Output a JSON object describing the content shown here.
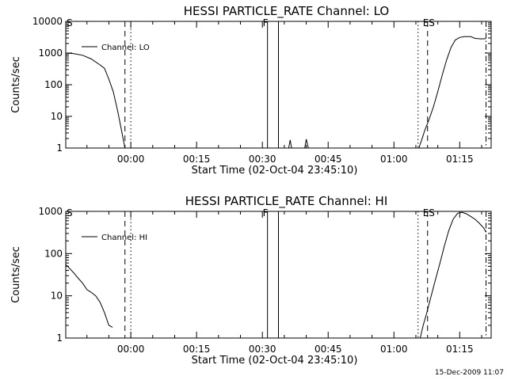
{
  "footer_timestamp": "15-Dec-2009 11:07",
  "chart_data": [
    {
      "type": "line",
      "title": "HESSI PARTICLE_RATE Channel: LO",
      "xlabel": "Start Time (02-Oct-04 23:45:10)",
      "ylabel": "Counts/sec",
      "yscale": "log",
      "ylim": [
        1,
        10000
      ],
      "yticks": [
        "1",
        "10",
        "100",
        "1000",
        "10000"
      ],
      "xlim": [
        "23:45:10",
        "01:22:10"
      ],
      "xticks": [
        "00:00",
        "00:15",
        "00:30",
        "00:45",
        "01:00",
        "01:15"
      ],
      "legend": "Channel: LO",
      "legend_position": "top-left",
      "series": [
        {
          "name": "Channel: LO",
          "segments": [
            [
              [
                "23:45:10",
                1000
              ],
              [
                "23:47:00",
                960
              ],
              [
                "23:49:00",
                850
              ],
              [
                "23:51:00",
                650
              ],
              [
                "23:53:00",
                420
              ],
              [
                "23:54:00",
                330
              ],
              [
                "23:55:00",
                150
              ],
              [
                "23:56:00",
                60
              ],
              [
                "23:57:00",
                15
              ],
              [
                "23:58:00",
                3
              ],
              [
                "23:58:40",
                1
              ]
            ],
            [
              [
                "00:36:00",
                1
              ],
              [
                "00:36:20",
                1.8
              ],
              [
                "00:36:40",
                1
              ]
            ],
            [
              [
                "00:39:40",
                1
              ],
              [
                "00:40:00",
                1.9
              ],
              [
                "00:40:30",
                1
              ]
            ],
            [
              [
                "01:05:40",
                1
              ],
              [
                "01:06:20",
                1.8
              ],
              [
                "01:07:00",
                3.5
              ],
              [
                "01:08:00",
                8
              ],
              [
                "01:09:00",
                20
              ],
              [
                "01:10:00",
                60
              ],
              [
                "01:11:00",
                200
              ],
              [
                "01:12:00",
                600
              ],
              [
                "01:13:00",
                1500
              ],
              [
                "01:14:00",
                2600
              ],
              [
                "01:15:00",
                3100
              ],
              [
                "01:16:00",
                3300
              ],
              [
                "01:17:30",
                3300
              ],
              [
                "01:18:30",
                2900
              ],
              [
                "01:20:00",
                2800
              ],
              [
                "01:21:00",
                2850
              ]
            ]
          ]
        }
      ],
      "events": [
        {
          "label": "S",
          "time": "23:45:10",
          "style": "solid"
        },
        {
          "label": "",
          "time": "23:58:40",
          "style": "dashed"
        },
        {
          "label": "",
          "time": "00:00:00",
          "style": "dotted"
        },
        {
          "label": "F",
          "time": "00:31:10",
          "style": "solid"
        },
        {
          "label": "",
          "time": "00:33:40",
          "style": "solid"
        },
        {
          "label": "",
          "time": "01:05:30",
          "style": "dotted"
        },
        {
          "label": "ES",
          "time": "01:07:40",
          "style": "dashed"
        },
        {
          "label": "",
          "time": "01:21:00",
          "style": "dashdot"
        }
      ]
    },
    {
      "type": "line",
      "title": "HESSI PARTICLE_RATE Channel: HI",
      "xlabel": "Start Time (02-Oct-04 23:45:10)",
      "ylabel": "Counts/sec",
      "yscale": "log",
      "ylim": [
        1,
        1000
      ],
      "yticks": [
        "1",
        "10",
        "100",
        "1000"
      ],
      "xlim": [
        "23:45:10",
        "01:22:10"
      ],
      "xticks": [
        "00:00",
        "00:15",
        "00:30",
        "00:45",
        "01:00",
        "01:15"
      ],
      "legend": "Channel: HI",
      "legend_position": "top-left",
      "series": [
        {
          "name": "Channel: HI",
          "segments": [
            [
              [
                "23:45:10",
                55
              ],
              [
                "23:46:00",
                45
              ],
              [
                "23:47:00",
                35
              ],
              [
                "23:48:00",
                26
              ],
              [
                "23:49:00",
                20
              ],
              [
                "23:50:00",
                14
              ],
              [
                "23:51:00",
                12
              ],
              [
                "23:52:00",
                10
              ],
              [
                "23:53:00",
                7
              ],
              [
                "23:54:00",
                4
              ],
              [
                "23:55:00",
                2
              ],
              [
                "23:55:50",
                1.8
              ]
            ],
            [
              [
                "01:06:00",
                1
              ],
              [
                "01:06:40",
                2
              ],
              [
                "01:07:30",
                4
              ],
              [
                "01:08:30",
                10
              ],
              [
                "01:09:30",
                25
              ],
              [
                "01:10:30",
                60
              ],
              [
                "01:11:30",
                150
              ],
              [
                "01:12:30",
                350
              ],
              [
                "01:13:30",
                650
              ],
              [
                "01:14:30",
                900
              ],
              [
                "01:15:30",
                950
              ],
              [
                "01:16:30",
                880
              ],
              [
                "01:17:30",
                760
              ],
              [
                "01:18:30",
                650
              ],
              [
                "01:19:30",
                520
              ],
              [
                "01:20:30",
                400
              ],
              [
                "01:21:00",
                320
              ]
            ]
          ]
        }
      ],
      "events": [
        {
          "label": "S",
          "time": "23:45:10",
          "style": "solid"
        },
        {
          "label": "",
          "time": "23:58:40",
          "style": "dashed"
        },
        {
          "label": "",
          "time": "00:00:00",
          "style": "dotted"
        },
        {
          "label": "F",
          "time": "00:31:10",
          "style": "solid"
        },
        {
          "label": "",
          "time": "00:33:40",
          "style": "solid"
        },
        {
          "label": "",
          "time": "01:05:30",
          "style": "dotted"
        },
        {
          "label": "ES",
          "time": "01:07:40",
          "style": "dashed"
        },
        {
          "label": "",
          "time": "01:21:00",
          "style": "dashdot"
        }
      ]
    }
  ]
}
